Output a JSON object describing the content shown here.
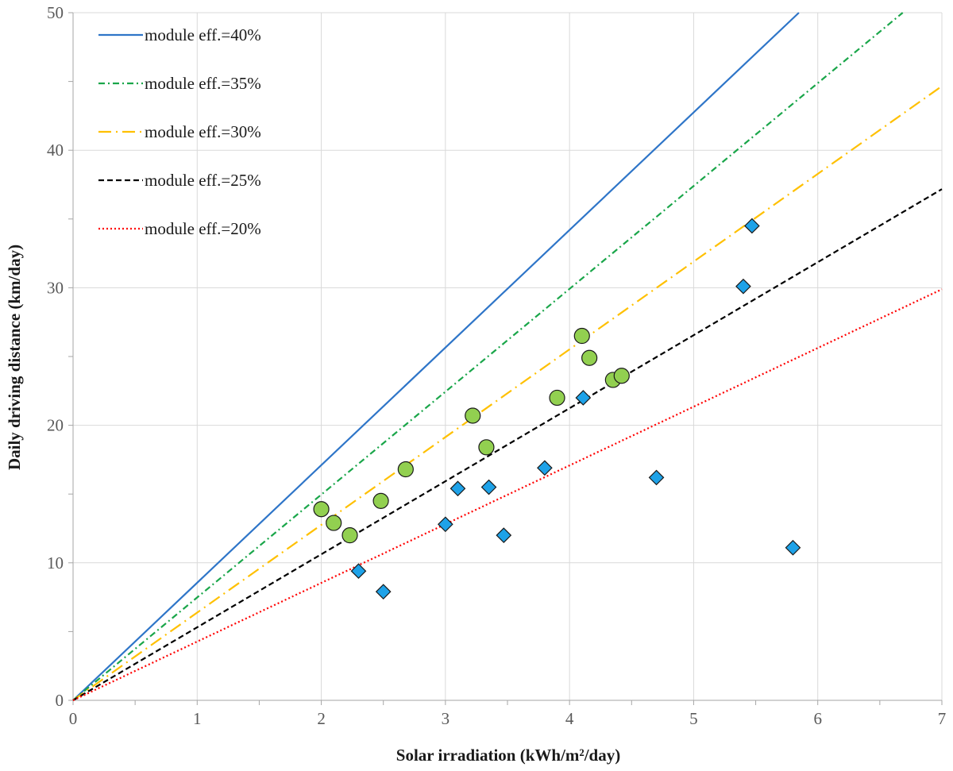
{
  "chart_data": {
    "type": "scatter",
    "title": "",
    "xlabel": "Solar irradiation (kWh/m²/day)",
    "ylabel": "Daily driving distance (km/day)",
    "xlim": [
      0,
      7
    ],
    "ylim": [
      0,
      50
    ],
    "x_ticks": [
      0,
      1,
      2,
      3,
      4,
      5,
      6,
      7
    ],
    "y_ticks": [
      0,
      10,
      20,
      30,
      40,
      50
    ],
    "grid": true,
    "legend_position": "top-left",
    "lines": [
      {
        "name": "module eff.=40%",
        "slope": 8.55,
        "color": "#2e75c8",
        "style": "solid"
      },
      {
        "name": "module eff.=35%",
        "slope": 7.48,
        "color": "#1aa64a",
        "style": "dash-dot"
      },
      {
        "name": "module eff.=30%",
        "slope": 6.38,
        "color": "#ffc000",
        "style": "long-dash-dot"
      },
      {
        "name": "module eff.=25%",
        "slope": 5.31,
        "color": "#000000",
        "style": "dashed"
      },
      {
        "name": "module eff.=20%",
        "slope": 4.27,
        "color": "#ff0000",
        "style": "dotted"
      }
    ],
    "series": [
      {
        "name": "circles",
        "marker": "circle",
        "color": "#92d050",
        "points": [
          [
            2.0,
            13.9
          ],
          [
            2.1,
            12.9
          ],
          [
            2.23,
            12.0
          ],
          [
            2.48,
            14.5
          ],
          [
            2.68,
            16.8
          ],
          [
            3.22,
            20.7
          ],
          [
            3.33,
            18.4
          ],
          [
            3.9,
            22.0
          ],
          [
            4.1,
            26.5
          ],
          [
            4.16,
            24.9
          ],
          [
            4.35,
            23.3
          ],
          [
            4.42,
            23.6
          ]
        ]
      },
      {
        "name": "diamonds",
        "marker": "diamond",
        "color": "#1ea2e8",
        "points": [
          [
            2.3,
            9.4
          ],
          [
            2.5,
            7.9
          ],
          [
            3.0,
            12.8
          ],
          [
            3.1,
            15.4
          ],
          [
            3.35,
            15.5
          ],
          [
            3.47,
            12.0
          ],
          [
            3.8,
            16.9
          ],
          [
            4.11,
            22.0
          ],
          [
            4.7,
            16.2
          ],
          [
            5.4,
            30.1
          ],
          [
            5.47,
            34.5
          ],
          [
            5.8,
            11.1
          ]
        ]
      }
    ]
  }
}
